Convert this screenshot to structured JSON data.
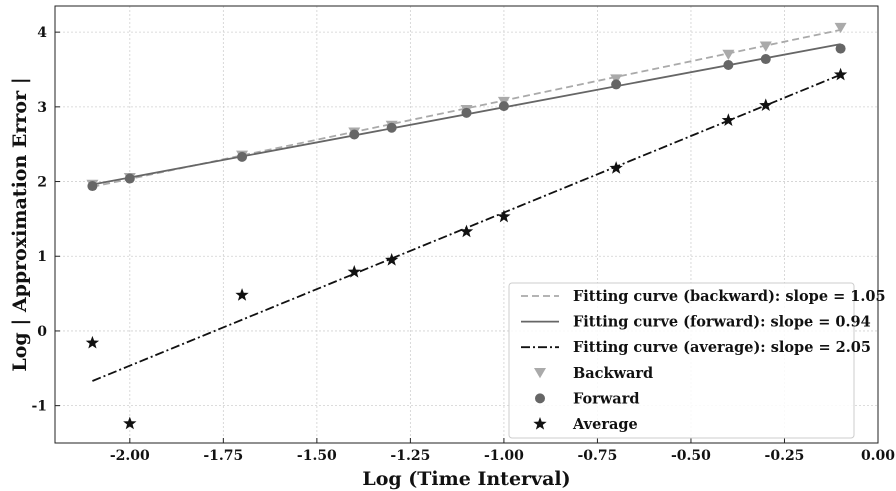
{
  "chart_data": {
    "type": "scatter",
    "title": "",
    "xlabel": "Log (Time Interval)",
    "ylabel": "Log | Approximation Error |",
    "xlim": [
      -2.2,
      0.0
    ],
    "ylim": [
      -1.5,
      4.35
    ],
    "grid": true,
    "legend_position": "bottom-right",
    "x_ticks": [
      -2.0,
      -1.75,
      -1.5,
      -1.25,
      -1.0,
      -0.75,
      -0.5,
      -0.25,
      0.0
    ],
    "x_tick_labels": [
      "-2.00",
      "-1.75",
      "-1.50",
      "-1.25",
      "-1.00",
      "-0.75",
      "-0.50",
      "-0.25",
      "0.00"
    ],
    "y_ticks": [
      -1,
      0,
      1,
      2,
      3,
      4
    ],
    "y_tick_labels": [
      "-1",
      "0",
      "1",
      "2",
      "3",
      "4"
    ],
    "x": [
      -2.1,
      -2.0,
      -1.7,
      -1.4,
      -1.3,
      -1.1,
      -1.0,
      -0.7,
      -0.4,
      -0.3,
      -0.1
    ],
    "series": [
      {
        "name": "Backward",
        "marker": "triangle-down",
        "color": "#aaaaaa",
        "values": [
          1.96,
          2.05,
          2.35,
          2.66,
          2.75,
          2.96,
          3.07,
          3.37,
          3.7,
          3.81,
          4.06
        ]
      },
      {
        "name": "Forward",
        "marker": "circle",
        "color": "#666666",
        "values": [
          1.94,
          2.04,
          2.33,
          2.63,
          2.72,
          2.92,
          3.01,
          3.3,
          3.56,
          3.64,
          3.78
        ]
      },
      {
        "name": "Average",
        "marker": "star",
        "color": "#111111",
        "values": [
          -0.16,
          -1.24,
          0.48,
          0.79,
          0.95,
          1.33,
          1.53,
          2.18,
          2.82,
          3.02,
          3.43
        ]
      }
    ],
    "fits": [
      {
        "name": "Fitting curve (backward): slope = 1.05",
        "style": "dashed",
        "color": "#aaaaaa",
        "x": [
          -2.1,
          -0.1
        ],
        "y": [
          1.93,
          4.03
        ]
      },
      {
        "name": "Fitting curve (forward): slope = 0.94",
        "style": "solid",
        "color": "#666666",
        "x": [
          -2.1,
          -0.1
        ],
        "y": [
          1.96,
          3.84
        ]
      },
      {
        "name": "Fitting curve (average): slope = 2.05",
        "style": "dashdot",
        "color": "#111111",
        "x": [
          -2.1,
          -0.1
        ],
        "y": [
          -0.67,
          3.43
        ]
      }
    ],
    "legend": [
      "Fitting curve (backward): slope = 1.05",
      "Fitting curve (forward): slope = 0.94",
      "Fitting curve (average): slope = 2.05",
      "Backward",
      "Forward",
      "Average"
    ]
  }
}
